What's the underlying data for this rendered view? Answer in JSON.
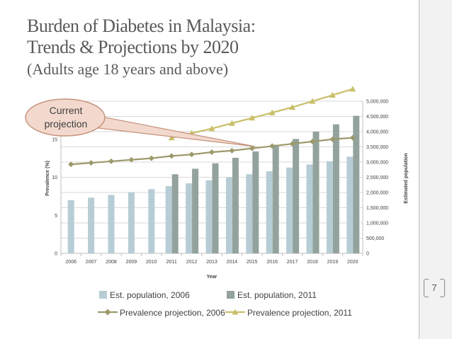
{
  "slide": {
    "title_line1": "Burden of Diabetes in Malaysia:",
    "title_line2": "Trends & Projections by 2020",
    "subtitle": "(Adults age 18 years and above)",
    "page_number": "7"
  },
  "callout": {
    "line1": "Current",
    "line2": "projection"
  },
  "colors": {
    "bar_2006": "#b7cdd5",
    "bar_2011": "#93a29c",
    "line_2006": "#9c9a6b",
    "line_2011": "#c9bf68",
    "callout_fill": "#f3d9cd",
    "callout_stroke": "#c5937c",
    "grid": "#d9d9d9",
    "axis_text": "#404040"
  },
  "chart_data": {
    "type": "bar",
    "xlabel": "Year",
    "ylabel_left": "Prevalence (%)",
    "ylabel_right": "Estimated population",
    "categories": [
      "2006",
      "2007",
      "2008",
      "2009",
      "2010",
      "2011",
      "2012",
      "2013",
      "2014",
      "2015",
      "2016",
      "2017",
      "2018",
      "2019",
      "2020"
    ],
    "left_axis": {
      "min": 0,
      "max": 20,
      "ticks": [
        0,
        5,
        10,
        15
      ],
      "tick_labels": [
        "0",
        "5",
        "10",
        "15"
      ]
    },
    "right_axis": {
      "min": 0,
      "max": 5000000,
      "ticks": [
        0,
        500000,
        1000000,
        1500000,
        2000000,
        2500000,
        3000000,
        3500000,
        4000000,
        4500000,
        5000000
      ],
      "tick_labels": [
        "0",
        "500,000",
        "1,000,000",
        "1,500,000",
        "2,000,000",
        "2,500,000",
        "3,000,000",
        "3,500,000",
        "4,000,000",
        "4,500,000",
        "5,000,000"
      ]
    },
    "series": [
      {
        "name": "Est. population, 2006",
        "kind": "bar",
        "axis": "right",
        "values": [
          1750000,
          1830000,
          1920000,
          2010000,
          2110000,
          2210000,
          2300000,
          2400000,
          2500000,
          2600000,
          2700000,
          2820000,
          2920000,
          3030000,
          3180000
        ]
      },
      {
        "name": "Est. population, 2011",
        "kind": "bar",
        "axis": "right",
        "values": [
          null,
          null,
          null,
          null,
          null,
          2600000,
          2780000,
          2960000,
          3140000,
          3350000,
          3570000,
          3760000,
          4000000,
          4240000,
          4520000
        ]
      },
      {
        "name": "Prevalence projection, 2006",
        "kind": "line",
        "axis": "left",
        "values": [
          11.7,
          11.9,
          12.1,
          12.3,
          12.5,
          12.8,
          13.0,
          13.3,
          13.5,
          13.8,
          14.1,
          14.4,
          14.7,
          15.0,
          15.2
        ]
      },
      {
        "name": "Prevalence projection, 2011",
        "kind": "line",
        "axis": "left",
        "values": [
          null,
          null,
          null,
          null,
          null,
          15.2,
          15.8,
          16.4,
          17.1,
          17.8,
          18.5,
          19.2,
          20.0,
          20.8,
          21.6
        ]
      }
    ]
  }
}
